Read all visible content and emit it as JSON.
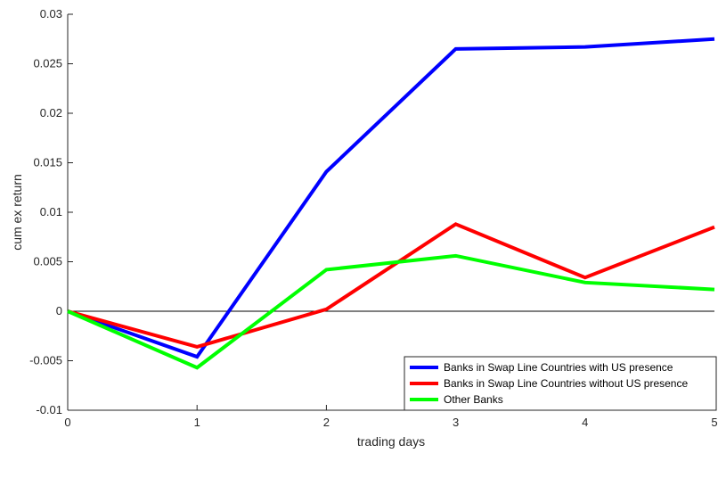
{
  "chart_data": {
    "type": "line",
    "title": "",
    "xlabel": "trading days",
    "ylabel": "cum ex return",
    "x": [
      0,
      1,
      2,
      3,
      4,
      5
    ],
    "xlim": [
      0,
      5
    ],
    "ylim": [
      -0.01,
      0.03
    ],
    "xticks": [
      "0",
      "1",
      "2",
      "3",
      "4",
      "5"
    ],
    "yticks": [
      "-0.01",
      "-0.005",
      "0",
      "0.005",
      "0.01",
      "0.015",
      "0.02",
      "0.025",
      "0.03"
    ],
    "grid": false,
    "legend_position": "bottom-right",
    "reference_line": 0,
    "series": [
      {
        "name": "Banks in Swap Line Countries with US presence",
        "color": "#0000ff",
        "values": [
          0,
          -0.0046,
          0.0141,
          0.0265,
          0.0267,
          0.0275
        ]
      },
      {
        "name": "Banks in Swap Line Countries without US presence",
        "color": "#ff0000",
        "values": [
          0,
          -0.0036,
          0.0002,
          0.0088,
          0.0034,
          0.0085
        ]
      },
      {
        "name": "Other Banks",
        "color": "#00ff00",
        "values": [
          0,
          -0.0057,
          0.0042,
          0.0056,
          0.0029,
          0.0022
        ]
      }
    ]
  }
}
